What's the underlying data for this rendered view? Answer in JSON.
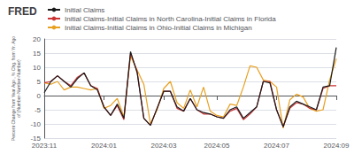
{
  "chart_data": {
    "type": "line",
    "title": "FRED",
    "ylabel": "Percent Change from Year Ago , % Chg. from Yr. Ago\nof (Number-Number-Number)",
    "categories": [
      "2023:11",
      null,
      null,
      null,
      null,
      null,
      null,
      null,
      null,
      "2024:01",
      null,
      null,
      null,
      null,
      null,
      null,
      null,
      null,
      "2024:03",
      null,
      null,
      null,
      null,
      null,
      null,
      null,
      "2024:05",
      null,
      null,
      null,
      null,
      null,
      null,
      null,
      null,
      "2024:07",
      null,
      null,
      null,
      null,
      null,
      null,
      null,
      null,
      "2024:09"
    ],
    "series": [
      {
        "name": "Initial Claims",
        "color": "#1a1a1a",
        "values": [
          1.0,
          5.0,
          7.0,
          5.0,
          3.0,
          6.0,
          8.0,
          3.5,
          2.0,
          -4.0,
          -7.0,
          -3.0,
          -8.0,
          15.5,
          8.0,
          -8.0,
          -10.5,
          -4.5,
          1.5,
          1.5,
          -4.0,
          -5.5,
          -1.0,
          -5.0,
          -6.0,
          -6.5,
          -7.5,
          -8.0,
          -5.0,
          -4.0,
          -8.0,
          -6.0,
          -4.0,
          5.0,
          4.5,
          -5.0,
          -11.0,
          -4.0,
          -2.0,
          -3.0,
          -4.0,
          -5.0,
          3.0,
          3.5,
          17.0
        ]
      },
      {
        "name": "Initial Claims-Initial Claims in North Carolina-Initial Claims in Florida",
        "color": "#cc3333",
        "values": [
          4.5,
          5.0,
          7.0,
          5.0,
          3.5,
          6.5,
          8.0,
          3.5,
          2.5,
          -4.0,
          -7.0,
          -3.5,
          -8.5,
          15.0,
          8.5,
          -8.0,
          -10.5,
          -4.5,
          1.5,
          1.5,
          -4.5,
          -5.5,
          -1.0,
          -5.0,
          -6.5,
          -6.5,
          -7.5,
          -8.0,
          -5.5,
          -4.5,
          -8.5,
          -6.5,
          -4.0,
          5.0,
          5.0,
          -5.0,
          -11.0,
          -4.5,
          -2.5,
          -3.0,
          -4.5,
          -5.0,
          2.5,
          3.5,
          3.5
        ]
      },
      {
        "name": "Initial Claims-Initial Claims in Ohio-Initial Claims in Michigan",
        "color": "#e8a020",
        "values": [
          4.5,
          4.0,
          5.0,
          2.0,
          3.0,
          3.0,
          2.5,
          2.0,
          2.5,
          -4.5,
          -3.5,
          -1.0,
          -7.5,
          14.0,
          9.0,
          4.0,
          -10.0,
          -5.0,
          2.5,
          5.0,
          -2.5,
          -4.5,
          2.0,
          -4.0,
          3.0,
          -5.5,
          -7.0,
          -7.5,
          -3.0,
          -3.5,
          3.0,
          10.5,
          10.0,
          5.5,
          5.0,
          3.0,
          -11.5,
          -1.5,
          0.5,
          -0.5,
          -4.5,
          -5.5,
          -5.0,
          5.5,
          13.0
        ]
      }
    ],
    "ylim": [
      -15,
      20
    ],
    "yticks": [
      -15,
      -10,
      -5,
      0,
      5,
      10,
      15,
      20
    ],
    "grid": true
  }
}
